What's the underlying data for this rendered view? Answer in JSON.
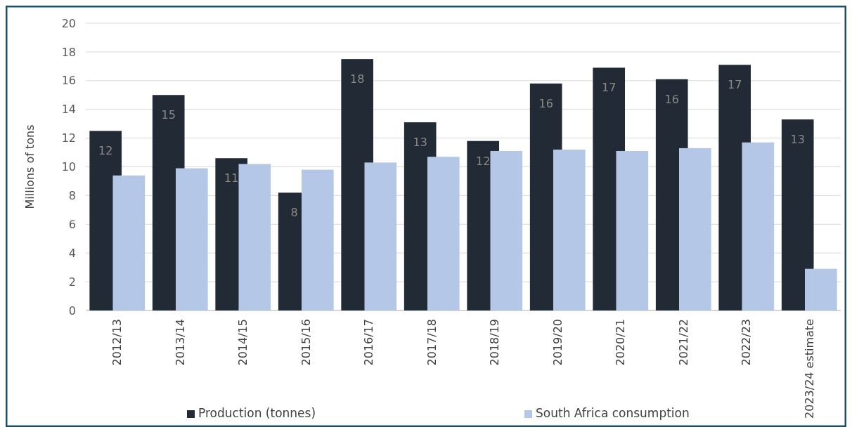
{
  "chart_data": {
    "type": "bar",
    "ylabel": "Millions of tons",
    "categories": [
      "2012/13",
      "2013/14",
      "2014/15",
      "2015/16",
      "2016/17",
      "2017/18",
      "2018/19",
      "2019/20",
      "2020/21",
      "2021/22",
      "2022/23",
      "2023/24 estimate"
    ],
    "series": [
      {
        "name": "Production (tonnes)",
        "color": "#222a35",
        "values": [
          12.5,
          15.0,
          10.6,
          8.2,
          17.5,
          13.1,
          11.8,
          15.8,
          16.9,
          16.1,
          17.1,
          13.3
        ],
        "value_labels": [
          "12",
          "15",
          "11",
          "8",
          "18",
          "13",
          "12",
          "16",
          "17",
          "16",
          "17",
          "13"
        ]
      },
      {
        "name": "South Africa consumption",
        "color": "#b4c7e7",
        "values": [
          9.4,
          9.9,
          10.2,
          9.8,
          10.3,
          10.7,
          11.1,
          11.2,
          11.1,
          11.3,
          11.7,
          2.9
        ]
      }
    ],
    "ylim": [
      0,
      20
    ],
    "yticks": [
      0,
      2,
      4,
      6,
      8,
      10,
      12,
      14,
      16,
      18,
      20
    ],
    "grid": "y",
    "legend": "bottom"
  }
}
